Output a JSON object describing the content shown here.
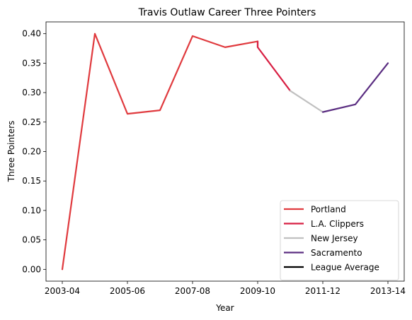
{
  "chart_data": {
    "type": "line",
    "title": "Travis Outlaw Career Three Pointers",
    "xlabel": "Year",
    "ylabel": "Three Pointers",
    "ylim": [
      -0.02,
      0.42
    ],
    "yticks": [
      0.0,
      0.05,
      0.1,
      0.15,
      0.2,
      0.25,
      0.3,
      0.35,
      0.4
    ],
    "ytick_labels": [
      "0.00",
      "0.05",
      "0.10",
      "0.15",
      "0.20",
      "0.25",
      "0.30",
      "0.35",
      "0.40"
    ],
    "xtick_labels": [
      "2003-04",
      "2005-06",
      "2007-08",
      "2009-10",
      "2011-12",
      "2013-14"
    ],
    "grid": false,
    "legend_position": "bottom-right",
    "series": [
      {
        "name": "Portland",
        "color": "#e03a3e",
        "points": [
          [
            "2003-04",
            0.0
          ],
          [
            "2004-05",
            0.4
          ],
          [
            "2005-06",
            0.264
          ],
          [
            "2006-07",
            0.27
          ],
          [
            "2007-08",
            0.396
          ],
          [
            "2008-09",
            0.377
          ],
          [
            "2009-10",
            0.387
          ],
          [
            "2009-10",
            0.377
          ]
        ]
      },
      {
        "name": "L.A. Clippers",
        "color": "#d81e42",
        "points": [
          [
            "2009-10",
            0.387
          ],
          [
            "2009-10",
            0.377
          ],
          [
            "2010-11",
            0.303
          ]
        ]
      },
      {
        "name": "New Jersey",
        "color": "#c0c0c0",
        "points": [
          [
            "2010-11",
            0.303
          ],
          [
            "2011-12",
            0.267
          ]
        ]
      },
      {
        "name": "Sacramento",
        "color": "#5a2d81",
        "points": [
          [
            "2011-12",
            0.267
          ],
          [
            "2012-13",
            0.28
          ],
          [
            "2013-14",
            0.35
          ]
        ]
      },
      {
        "name": "League Average",
        "color": "#000000",
        "points": []
      }
    ]
  }
}
